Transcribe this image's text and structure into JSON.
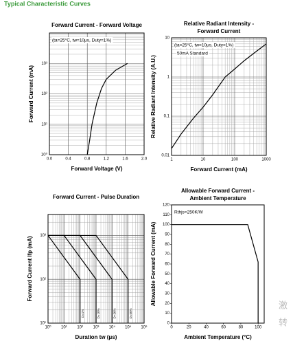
{
  "header": "Typical Characteristic Curves",
  "watermark": [
    "激",
    "转"
  ],
  "chart_data": [
    {
      "type": "line",
      "title_lines": [
        "Forward Current - Forward Voltage"
      ],
      "x_label": "Forward Voltage (V)",
      "y_label": "Forward Current (mA)",
      "annotations": [
        "(ta=25°C, tw=10μs, Duty=1%)"
      ],
      "xlim": [
        0,
        2
      ],
      "ylim": [
        1,
        10000
      ],
      "y_scale": "log",
      "grid": true,
      "xticks": [
        {
          "value": 0,
          "label": "0.0"
        },
        0.4,
        0.8,
        1.2,
        1.6,
        {
          "value": 2,
          "label": "2.0"
        }
      ],
      "yticks": [
        {
          "value": 1,
          "label": "10⁰"
        },
        {
          "value": 10,
          "label": "10¹"
        },
        {
          "value": 100,
          "label": "10²"
        },
        {
          "value": 1000,
          "label": "10³"
        }
      ],
      "series": [
        {
          "color": "#000000",
          "x": [
            0.8,
            0.85,
            0.9,
            1.0,
            1.1,
            1.2,
            1.4,
            1.65
          ],
          "values": [
            1,
            3,
            10,
            50,
            150,
            300,
            600,
            1000
          ]
        }
      ]
    },
    {
      "type": "line",
      "title_lines": [
        "Relative Radiant Intensity -",
        "Forward Current"
      ],
      "x_label": "Forward Current (mA)",
      "y_label": "Relative Radiant Intensity (A.U.)",
      "annotations": [
        "(ta=25°C, tw=10μs, Duty=1%)",
        "50mA Standard"
      ],
      "xlim": [
        1,
        1000
      ],
      "ylim": [
        0.01,
        10
      ],
      "x_scale": "log",
      "y_scale": "log",
      "grid": true,
      "xticks": [
        1,
        10,
        100,
        1000
      ],
      "yticks": [
        0.01,
        0.1,
        1,
        10
      ],
      "series": [
        {
          "color": "#000000",
          "x": [
            1,
            2,
            5,
            10,
            20,
            50,
            100,
            200,
            500,
            1000
          ],
          "values": [
            0.015,
            0.035,
            0.09,
            0.17,
            0.35,
            1,
            1.6,
            2.6,
            4.6,
            7
          ]
        }
      ]
    },
    {
      "type": "line",
      "title_lines": [
        "Forward Current - Pulse Duration"
      ],
      "x_label": "Duration tw (μs)",
      "y_label": "Forward Current Ifp (mA)",
      "annotations": [],
      "xlim": [
        1,
        1000000
      ],
      "ylim": [
        10,
        3000
      ],
      "x_scale": "log",
      "y_scale": "log",
      "grid": true,
      "xticks": [
        {
          "value": 1,
          "label": "10⁰"
        },
        {
          "value": 10,
          "label": "10¹"
        },
        {
          "value": 100,
          "label": "10²"
        },
        {
          "value": 1000,
          "label": "10³"
        },
        {
          "value": 10000,
          "label": "10⁴"
        },
        {
          "value": 100000,
          "label": "10⁵"
        },
        {
          "value": 1000000,
          "label": "10⁶"
        }
      ],
      "yticks": [
        {
          "value": 10,
          "label": "10¹"
        },
        {
          "value": 100,
          "label": "10²"
        },
        {
          "value": 1000,
          "label": "10³"
        }
      ],
      "series": [
        {
          "name": "D=1%",
          "color": "#000000",
          "x": [
            1,
            100,
            100
          ],
          "values": [
            1000,
            100,
            10
          ]
        },
        {
          "name": "D=10%",
          "color": "#000000",
          "x": [
            1,
            10,
            1000,
            1000
          ],
          "values": [
            1000,
            1000,
            100,
            10
          ]
        },
        {
          "name": "D=20%",
          "color": "#000000",
          "x": [
            1,
            100,
            10000,
            10000
          ],
          "values": [
            1000,
            1000,
            100,
            10
          ]
        },
        {
          "name": "D=50%",
          "color": "#000000",
          "x": [
            1,
            1000,
            100000,
            100000
          ],
          "values": [
            1000,
            1000,
            100,
            10
          ]
        }
      ]
    },
    {
      "type": "line",
      "title_lines": [
        "Allowable Forward Current -",
        "Ambient Temperature"
      ],
      "x_label": "Ambient Temperature (°C)",
      "y_label": "Allowable Forward Current (mA)",
      "annotations": [
        "Rthjs=250K/W"
      ],
      "xlim": [
        0,
        107
      ],
      "ylim": [
        0,
        120
      ],
      "grid": false,
      "xticks": [
        0,
        20,
        40,
        60,
        80,
        100
      ],
      "yticks": [
        0,
        10,
        20,
        30,
        40,
        50,
        60,
        70,
        80,
        90,
        100,
        110,
        120
      ],
      "series": [
        {
          "color": "#000000",
          "x": [
            0,
            88,
            100,
            100
          ],
          "values": [
            100,
            100,
            62,
            0
          ]
        }
      ]
    }
  ]
}
